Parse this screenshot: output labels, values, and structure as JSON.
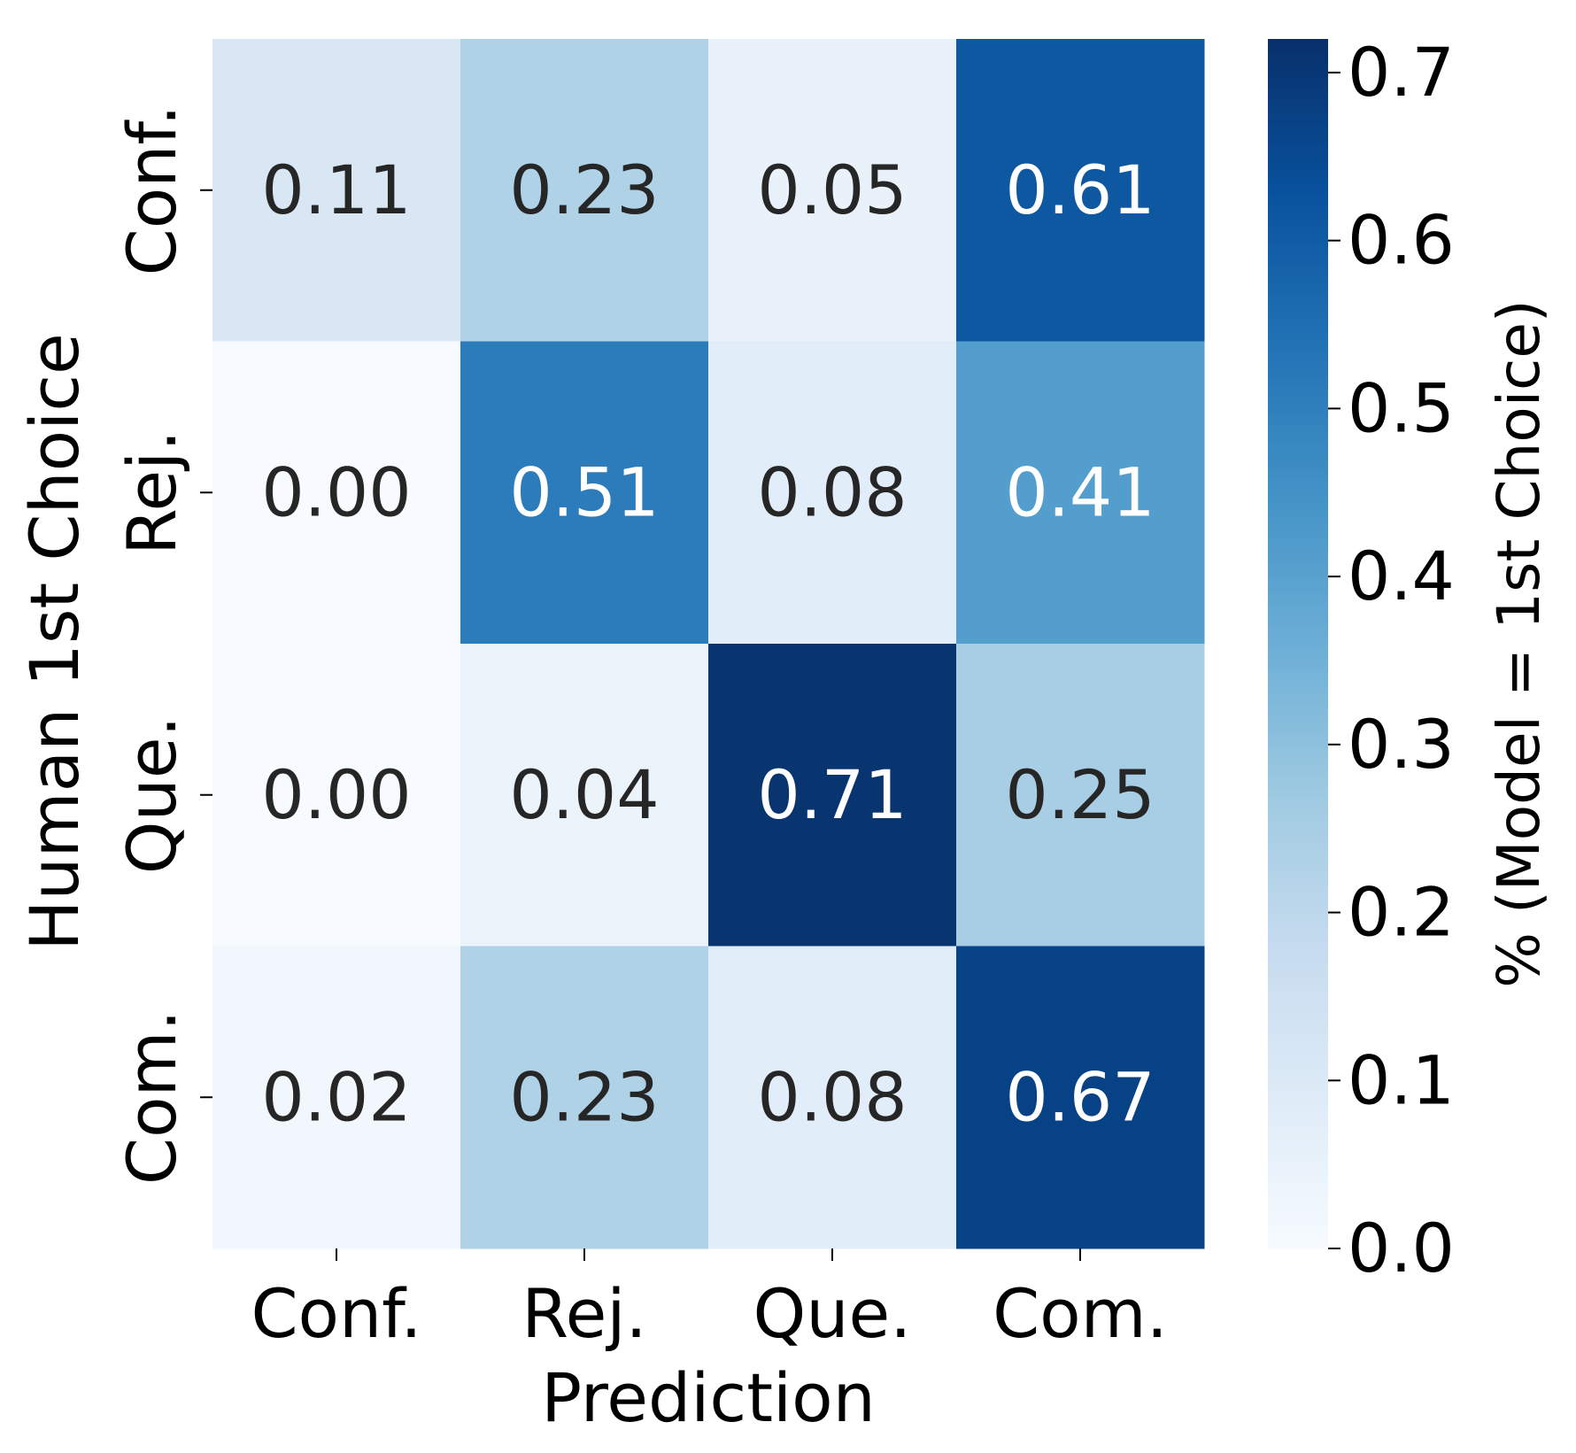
{
  "chart_data": {
    "type": "heatmap",
    "x_categories": [
      "Conf.",
      "Rej.",
      "Que.",
      "Com."
    ],
    "y_categories": [
      "Conf.",
      "Rej.",
      "Que.",
      "Com."
    ],
    "values": [
      [
        0.11,
        0.23,
        0.05,
        0.61
      ],
      [
        0.0,
        0.51,
        0.08,
        0.41
      ],
      [
        0.0,
        0.04,
        0.71,
        0.25
      ],
      [
        0.02,
        0.23,
        0.08,
        0.67
      ]
    ],
    "value_format_decimals": 2,
    "xlabel": "Prediction",
    "ylabel": "Human 1st Choice",
    "colorbar": {
      "label": "% (Model = 1st Choice)",
      "range": [
        0.0,
        0.72
      ],
      "ticks": [
        0.0,
        0.1,
        0.2,
        0.3,
        0.4,
        0.5,
        0.6,
        0.7
      ],
      "tick_labels": [
        "0.0",
        "0.1",
        "0.2",
        "0.3",
        "0.4",
        "0.5",
        "0.6",
        "0.7"
      ]
    },
    "colormap": "Blues",
    "colormap_stops": [
      "#f7fbff",
      "#deebf7",
      "#c6dbef",
      "#9ecae1",
      "#6baed6",
      "#4292c6",
      "#2171b5",
      "#08519c",
      "#08306b"
    ],
    "light_text_color": "#ffffff",
    "dark_text_color": "#262626"
  }
}
